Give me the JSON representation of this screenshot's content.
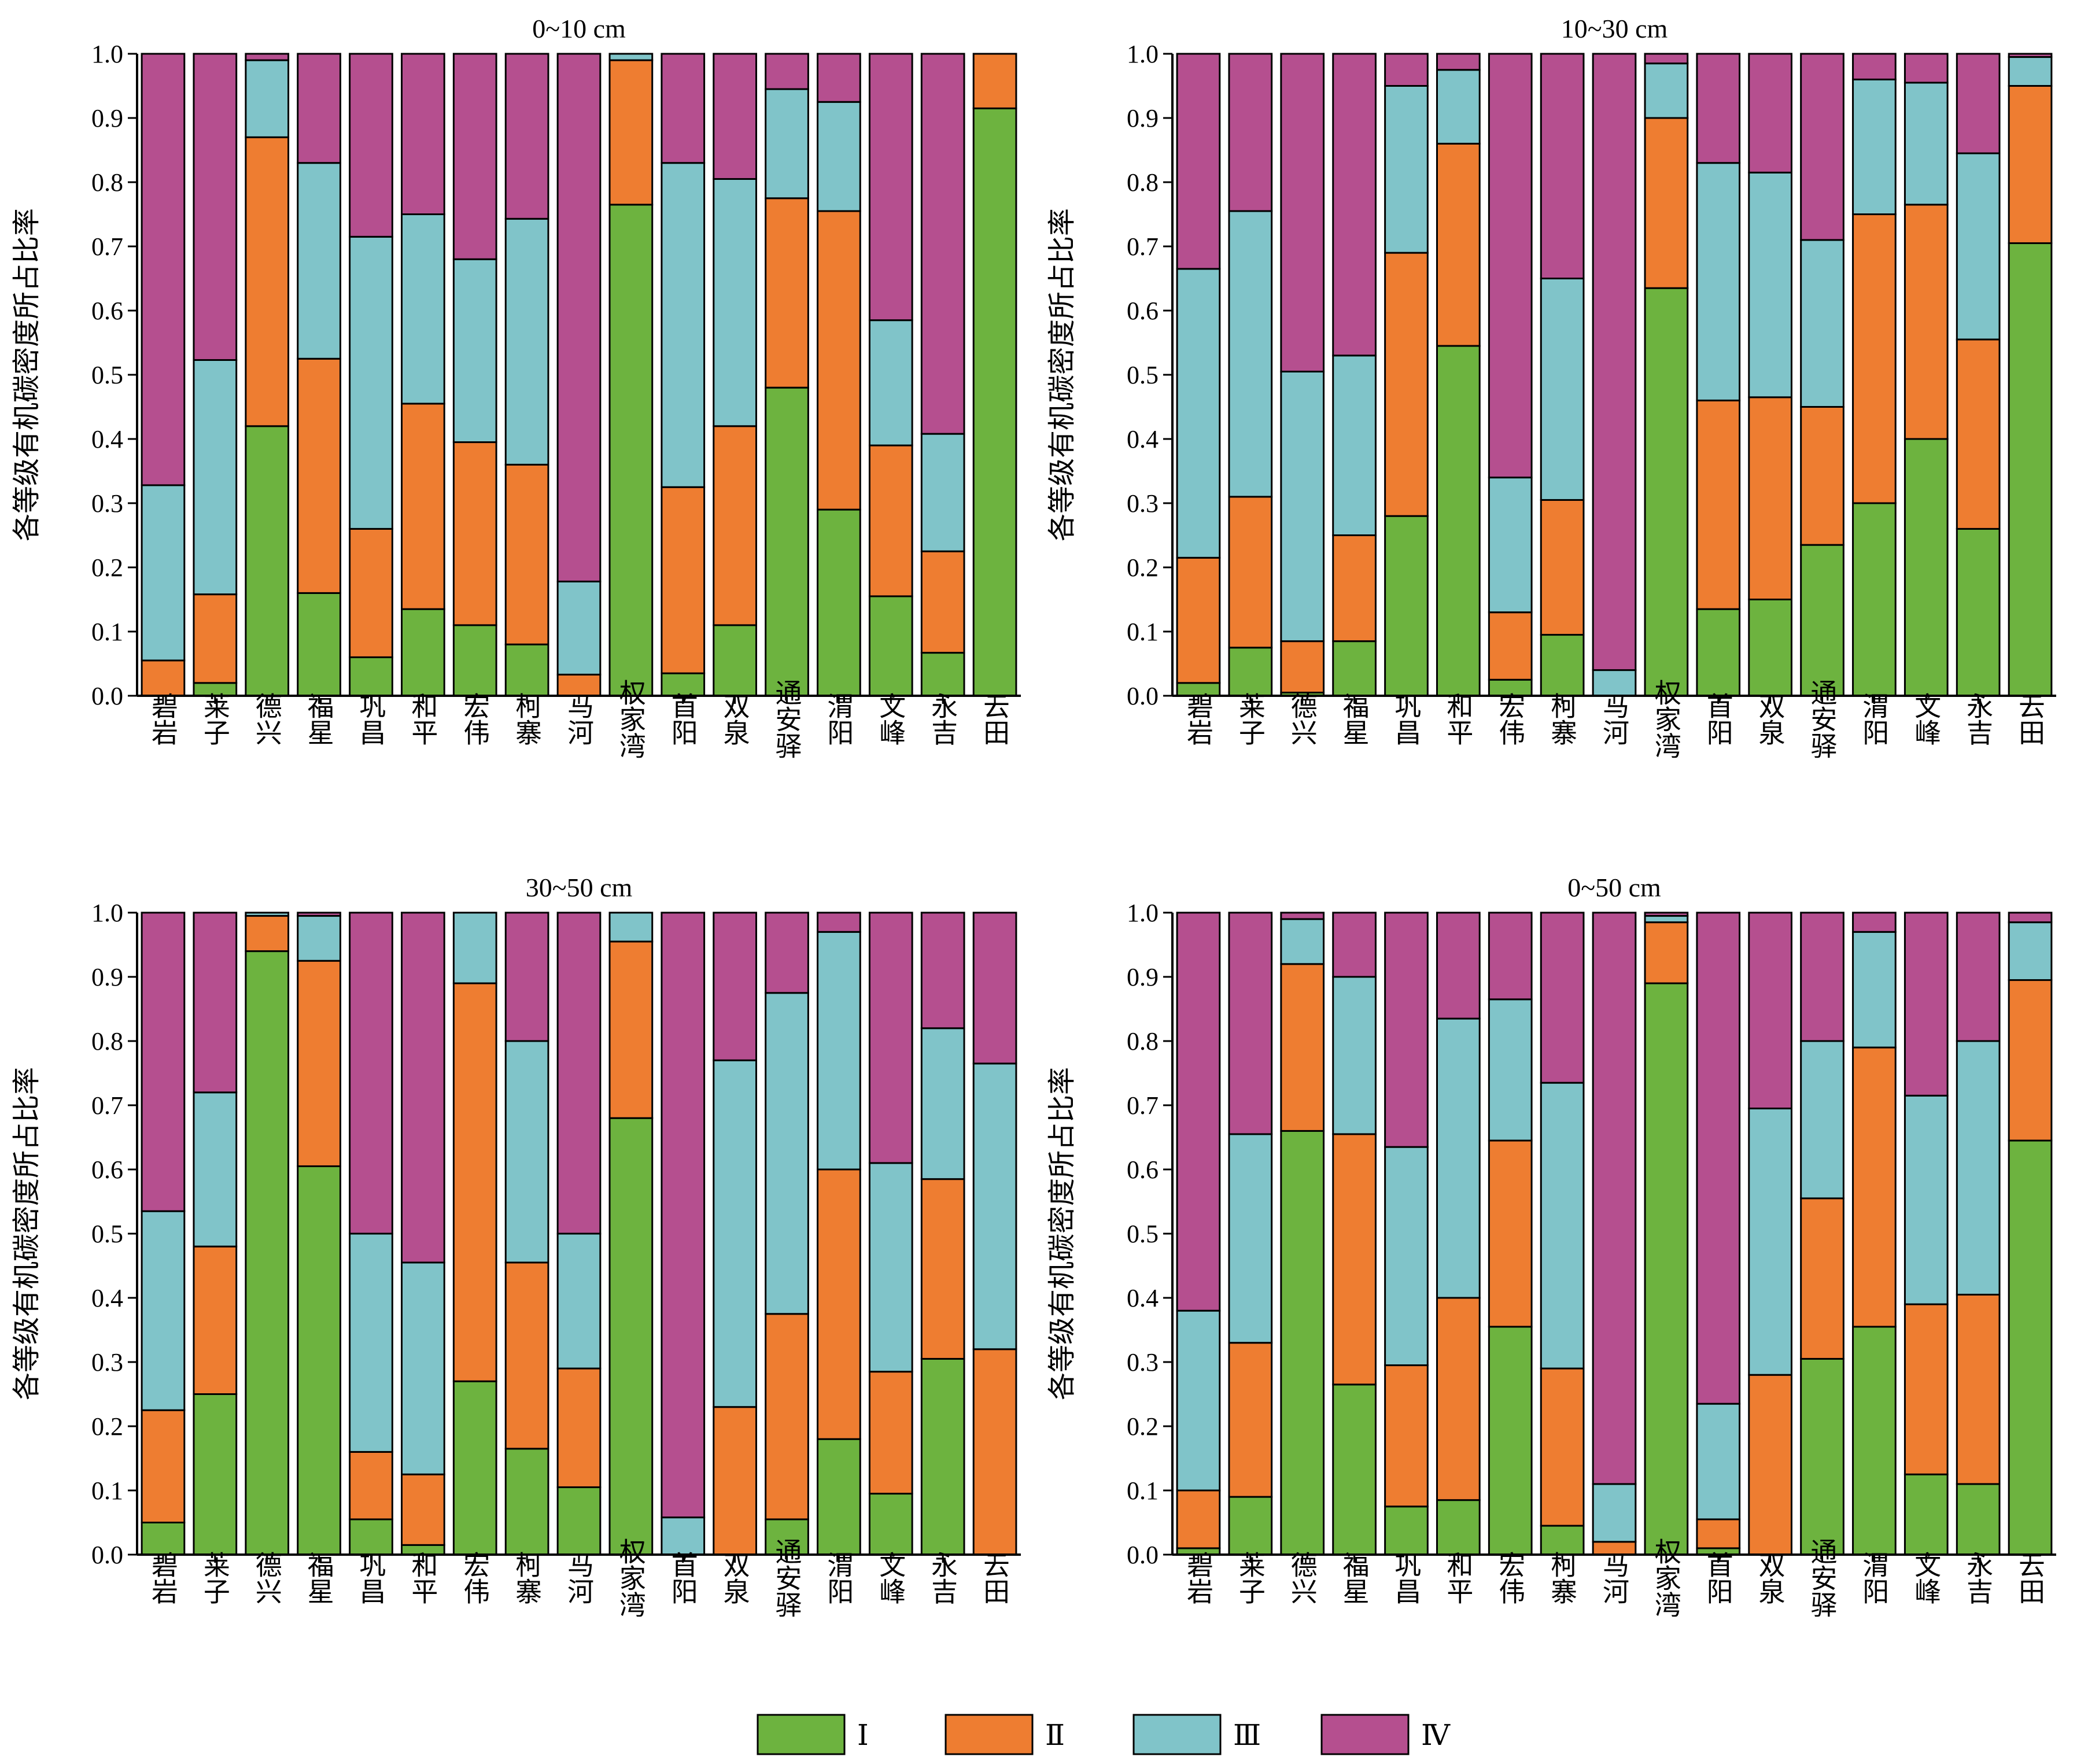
{
  "legend": [
    {
      "key": "I",
      "label": "Ⅰ",
      "color": "#6db33f"
    },
    {
      "key": "II",
      "label": "Ⅱ",
      "color": "#ee7d31"
    },
    {
      "key": "III",
      "label": "Ⅲ",
      "color": "#80c4c9"
    },
    {
      "key": "IV",
      "label": "Ⅳ",
      "color": "#b54f8f"
    }
  ],
  "chart_data": [
    {
      "type": "bar",
      "stacked": true,
      "title": "0~10 cm",
      "ylabel": "各等级有机碳密度所占比率",
      "ylim": [
        0,
        1.0
      ],
      "yticks": [
        "0.0",
        "0.1",
        "0.2",
        "0.3",
        "0.4",
        "0.5",
        "0.6",
        "0.7",
        "0.8",
        "0.9",
        "1.0"
      ],
      "categories": [
        "碧岩",
        "莱子",
        "德兴",
        "福星",
        "巩昌",
        "和平",
        "宏伟",
        "柯寨",
        "马河",
        "权家湾",
        "首阳",
        "双泉",
        "通安驿",
        "渭阳",
        "文峰",
        "永吉",
        "云田"
      ],
      "series": [
        {
          "name": "Ⅰ",
          "values": [
            0.0,
            0.02,
            0.42,
            0.16,
            0.06,
            0.135,
            0.11,
            0.08,
            0.0,
            0.765,
            0.035,
            0.11,
            0.48,
            0.29,
            0.155,
            0.067,
            0.915
          ]
        },
        {
          "name": "Ⅱ",
          "values": [
            0.055,
            0.138,
            0.45,
            0.365,
            0.2,
            0.32,
            0.285,
            0.28,
            0.033,
            0.225,
            0.29,
            0.31,
            0.295,
            0.465,
            0.235,
            0.158,
            0.085
          ]
        },
        {
          "name": "Ⅲ",
          "values": [
            0.273,
            0.365,
            0.12,
            0.305,
            0.455,
            0.295,
            0.285,
            0.383,
            0.145,
            0.01,
            0.505,
            0.385,
            0.17,
            0.17,
            0.195,
            0.183,
            0.0
          ]
        },
        {
          "name": "Ⅳ",
          "values": [
            0.672,
            0.477,
            0.01,
            0.17,
            0.285,
            0.25,
            0.32,
            0.257,
            0.822,
            0.0,
            0.17,
            0.195,
            0.055,
            0.075,
            0.415,
            0.592,
            0.0
          ]
        }
      ]
    },
    {
      "type": "bar",
      "stacked": true,
      "title": "10~30 cm",
      "ylabel": "各等级有机碳密度所占比率",
      "ylim": [
        0,
        1.0
      ],
      "yticks": [
        "0.0",
        "0.1",
        "0.2",
        "0.3",
        "0.4",
        "0.5",
        "0.6",
        "0.7",
        "0.8",
        "0.9",
        "1.0"
      ],
      "categories": [
        "碧岩",
        "莱子",
        "德兴",
        "福星",
        "巩昌",
        "和平",
        "宏伟",
        "柯寨",
        "马河",
        "权家湾",
        "首阳",
        "双泉",
        "通安驿",
        "渭阳",
        "文峰",
        "永吉",
        "云田"
      ],
      "series": [
        {
          "name": "Ⅰ",
          "values": [
            0.02,
            0.075,
            0.005,
            0.085,
            0.28,
            0.545,
            0.025,
            0.095,
            0.0,
            0.635,
            0.135,
            0.15,
            0.235,
            0.3,
            0.4,
            0.26,
            0.705
          ]
        },
        {
          "name": "Ⅱ",
          "values": [
            0.195,
            0.235,
            0.08,
            0.165,
            0.41,
            0.315,
            0.105,
            0.21,
            0.0,
            0.265,
            0.325,
            0.315,
            0.215,
            0.45,
            0.365,
            0.295,
            0.245
          ]
        },
        {
          "name": "Ⅲ",
          "values": [
            0.45,
            0.445,
            0.42,
            0.28,
            0.26,
            0.115,
            0.21,
            0.345,
            0.04,
            0.085,
            0.37,
            0.35,
            0.26,
            0.21,
            0.19,
            0.29,
            0.045
          ]
        },
        {
          "name": "Ⅳ",
          "values": [
            0.335,
            0.245,
            0.495,
            0.47,
            0.05,
            0.025,
            0.66,
            0.35,
            0.96,
            0.015,
            0.17,
            0.185,
            0.29,
            0.04,
            0.045,
            0.155,
            0.005
          ]
        }
      ]
    },
    {
      "type": "bar",
      "stacked": true,
      "title": "30~50 cm",
      "ylabel": "各等级有机碳密度所占比率",
      "ylim": [
        0,
        1.0
      ],
      "yticks": [
        "0.0",
        "0.1",
        "0.2",
        "0.3",
        "0.4",
        "0.5",
        "0.6",
        "0.7",
        "0.8",
        "0.9",
        "1.0"
      ],
      "categories": [
        "碧岩",
        "莱子",
        "德兴",
        "福星",
        "巩昌",
        "和平",
        "宏伟",
        "柯寨",
        "马河",
        "权家湾",
        "首阳",
        "双泉",
        "通安驿",
        "渭阳",
        "文峰",
        "永吉",
        "云田"
      ],
      "series": [
        {
          "name": "Ⅰ",
          "values": [
            0.05,
            0.25,
            0.94,
            0.605,
            0.055,
            0.015,
            0.27,
            0.165,
            0.105,
            0.68,
            0.0,
            0.0,
            0.055,
            0.18,
            0.095,
            0.305,
            0.0
          ]
        },
        {
          "name": "Ⅱ",
          "values": [
            0.175,
            0.23,
            0.055,
            0.32,
            0.105,
            0.11,
            0.62,
            0.29,
            0.185,
            0.275,
            0.0,
            0.23,
            0.32,
            0.42,
            0.19,
            0.28,
            0.32
          ]
        },
        {
          "name": "Ⅲ",
          "values": [
            0.31,
            0.24,
            0.005,
            0.07,
            0.34,
            0.33,
            0.11,
            0.345,
            0.21,
            0.045,
            0.058,
            0.54,
            0.5,
            0.37,
            0.325,
            0.235,
            0.445
          ]
        },
        {
          "name": "Ⅳ",
          "values": [
            0.465,
            0.28,
            0.0,
            0.005,
            0.5,
            0.545,
            0.0,
            0.2,
            0.5,
            0.0,
            0.942,
            0.23,
            0.125,
            0.03,
            0.39,
            0.18,
            0.235
          ]
        }
      ]
    },
    {
      "type": "bar",
      "stacked": true,
      "title": "0~50 cm",
      "ylabel": "各等级有机碳密度所占比率",
      "ylim": [
        0,
        1.0
      ],
      "yticks": [
        "0.0",
        "0.1",
        "0.2",
        "0.3",
        "0.4",
        "0.5",
        "0.6",
        "0.7",
        "0.8",
        "0.9",
        "1.0"
      ],
      "categories": [
        "碧岩",
        "莱子",
        "德兴",
        "福星",
        "巩昌",
        "和平",
        "宏伟",
        "柯寨",
        "马河",
        "权家湾",
        "首阳",
        "双泉",
        "通安驿",
        "渭阳",
        "文峰",
        "永吉",
        "云田"
      ],
      "series": [
        {
          "name": "Ⅰ",
          "values": [
            0.01,
            0.09,
            0.66,
            0.265,
            0.075,
            0.085,
            0.355,
            0.045,
            0.0,
            0.89,
            0.01,
            0.0,
            0.305,
            0.355,
            0.125,
            0.11,
            0.645
          ]
        },
        {
          "name": "Ⅱ",
          "values": [
            0.09,
            0.24,
            0.26,
            0.39,
            0.22,
            0.315,
            0.29,
            0.245,
            0.02,
            0.095,
            0.045,
            0.28,
            0.25,
            0.435,
            0.265,
            0.295,
            0.25
          ]
        },
        {
          "name": "Ⅲ",
          "values": [
            0.28,
            0.325,
            0.07,
            0.245,
            0.34,
            0.435,
            0.22,
            0.445,
            0.09,
            0.01,
            0.18,
            0.415,
            0.245,
            0.18,
            0.325,
            0.395,
            0.09
          ]
        },
        {
          "name": "Ⅳ",
          "values": [
            0.62,
            0.345,
            0.01,
            0.1,
            0.365,
            0.165,
            0.135,
            0.265,
            0.89,
            0.005,
            0.765,
            0.305,
            0.2,
            0.03,
            0.285,
            0.2,
            0.015
          ]
        }
      ]
    }
  ]
}
